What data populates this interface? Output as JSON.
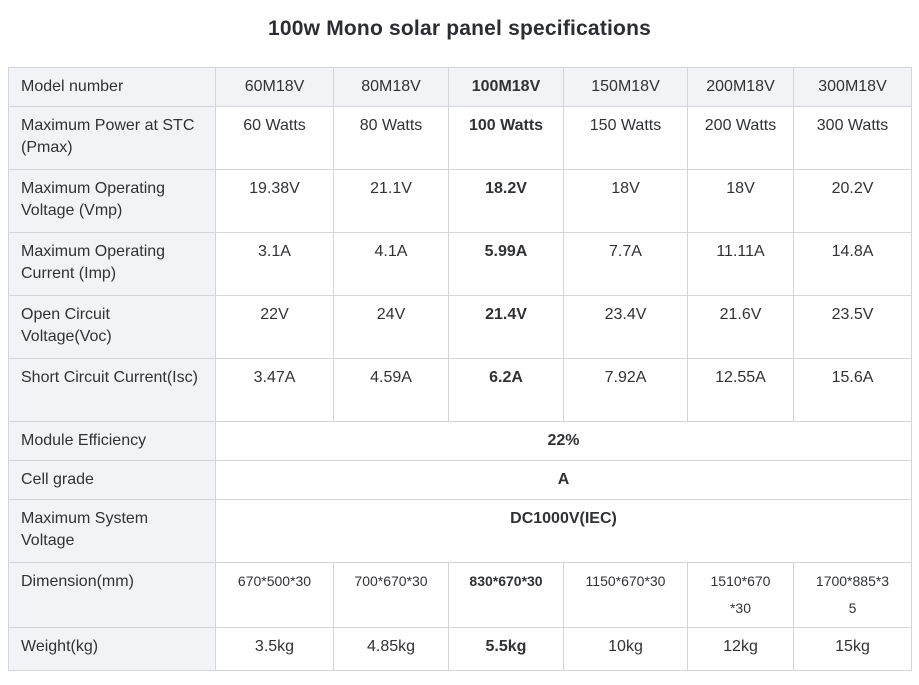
{
  "page": {
    "title": "100w Mono solar panel specifications"
  },
  "table": {
    "corner_label": "Model number",
    "models": [
      "60M18V",
      "80M18V",
      "100M18V",
      "150M18V",
      "200M18V",
      "300M18V"
    ],
    "highlight_model": "100M18V",
    "rows": [
      {
        "label": "Maximum Power at STC (Pmax)",
        "values": [
          "60 Watts",
          "80 Watts",
          "100 Watts",
          "150 Watts",
          "200 Watts",
          "300 Watts"
        ]
      },
      {
        "label": "Maximum Operating Voltage (Vmp)",
        "values": [
          "19.38V",
          "21.1V",
          "18.2V",
          "18V",
          "18V",
          "20.2V"
        ]
      },
      {
        "label": "Maximum Operating Current (Imp)",
        "values": [
          "3.1A",
          "4.1A",
          "5.99A",
          "7.7A",
          "11.11A",
          "14.8A"
        ]
      },
      {
        "label": "Open Circuit Voltage(Voc)",
        "values": [
          "22V",
          "24V",
          "21.4V",
          "23.4V",
          "21.6V",
          "23.5V"
        ]
      },
      {
        "label": "Short Circuit Current(Isc)",
        "values": [
          "3.47A",
          "4.59A",
          "6.2A",
          "7.92A",
          "12.55A",
          "15.6A"
        ]
      },
      {
        "label": "Module Efficiency",
        "merged_value": "22%"
      },
      {
        "label": "Cell grade",
        "merged_value": "A"
      },
      {
        "label": "Maximum System Voltage",
        "merged_value": "DC1000V(IEC)"
      },
      {
        "label": "Dimension(mm)",
        "small_font": true,
        "values": [
          "670*500*30",
          "700*670*30",
          "830*670*30",
          "1150*670*30",
          "1510*670*30",
          "1700*885*35"
        ]
      },
      {
        "label": "Weight(kg)",
        "values": [
          "3.5kg",
          "4.85kg",
          "5.5kg",
          "10kg",
          "12kg",
          "15kg"
        ]
      }
    ]
  },
  "colors": {
    "header_background": "#f2f3f6",
    "border": "#d4d5d8",
    "text": "#303236",
    "title": "#2b2d31",
    "cell_background": "#ffffff"
  }
}
